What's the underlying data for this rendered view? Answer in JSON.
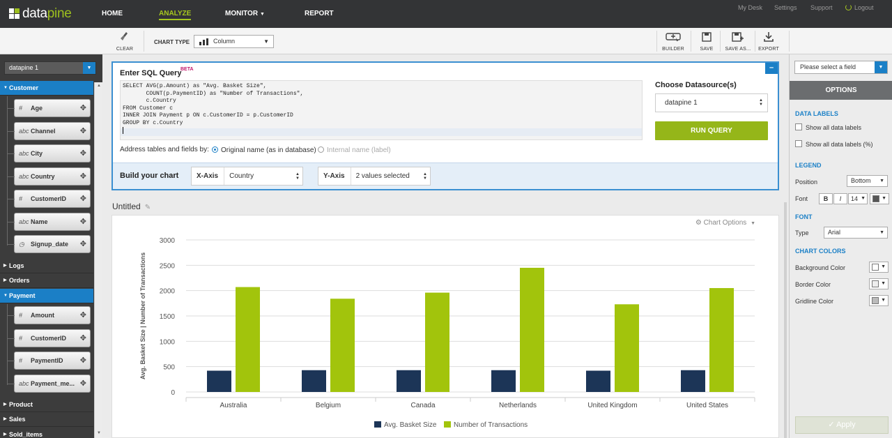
{
  "brand": {
    "part1": "data",
    "part2": "pine",
    "green": "#9dbf1e",
    "blue": "#1b7fc6"
  },
  "nav": {
    "items": [
      {
        "label": "HOME"
      },
      {
        "label": "ANALYZE"
      },
      {
        "label": "MONITOR"
      },
      {
        "label": "REPORT"
      }
    ],
    "active": "ANALYZE",
    "utility": [
      {
        "label": "My Desk"
      },
      {
        "label": "Settings"
      },
      {
        "label": "Support"
      },
      {
        "label": "Logout"
      }
    ]
  },
  "toolbar": {
    "clear_label": "CLEAR",
    "chart_type_label": "CHART TYPE",
    "chart_type_value": "Column",
    "builder_label": "BUILDER",
    "save_label": "SAVE",
    "save_as_label": "SAVE AS...",
    "export_label": "EXPORT"
  },
  "sidebar": {
    "datasource": "datapine 1",
    "tables": [
      {
        "name": "Customer",
        "open": true,
        "fields": [
          {
            "name": "Age",
            "type": "number"
          },
          {
            "name": "Channel",
            "type": "text"
          },
          {
            "name": "City",
            "type": "text"
          },
          {
            "name": "Country",
            "type": "text"
          },
          {
            "name": "CustomerID",
            "type": "number"
          },
          {
            "name": "Name",
            "type": "text"
          },
          {
            "name": "Signup_date",
            "type": "date"
          }
        ]
      },
      {
        "name": "Logs",
        "open": false,
        "fields": []
      },
      {
        "name": "Orders",
        "open": false,
        "fields": []
      },
      {
        "name": "Payment",
        "open": true,
        "fields": [
          {
            "name": "Amount",
            "type": "number"
          },
          {
            "name": "CustomerID",
            "type": "number"
          },
          {
            "name": "PaymentID",
            "type": "number"
          },
          {
            "name": "Payment_me...",
            "type": "text"
          }
        ]
      },
      {
        "name": "Product",
        "open": false,
        "fields": []
      },
      {
        "name": "Sales",
        "open": false,
        "fields": []
      },
      {
        "name": "Sold_items",
        "open": false,
        "fields": []
      }
    ]
  },
  "sql": {
    "title": "Enter SQL Query",
    "beta": "BETA",
    "lines": [
      "SELECT AVG(p.Amount) as \"Avg. Basket Size\",",
      "       COUNT(p.PaymentID) as \"Number of Transactions\",",
      "       c.Country",
      "FROM Customer c",
      "INNER JOIN Payment p ON c.CustomerID = p.CustomerID",
      "GROUP BY c.Country"
    ],
    "choose_ds_label": "Choose Datasource(s)",
    "datasource": "datapine 1",
    "run_label": "RUN QUERY",
    "address_label": "Address tables and fields by:",
    "radio_original": "Original name (as in database)",
    "radio_internal": "Internal name (label)"
  },
  "build": {
    "title": "Build your chart",
    "x_key": "X-Axis",
    "x_value": "Country",
    "y_key": "Y-Axis",
    "y_value": "2 values selected"
  },
  "chart_header": {
    "title": "Untitled",
    "options_label": "Chart Options"
  },
  "chart_data": {
    "type": "bar",
    "categories": [
      "Australia",
      "Belgium",
      "Canada",
      "Netherlands",
      "United Kingdom",
      "United States"
    ],
    "series": [
      {
        "name": "Avg. Basket Size",
        "color": "#1c3557",
        "values": [
          420,
          430,
          430,
          430,
          420,
          430
        ]
      },
      {
        "name": "Number of Transactions",
        "color": "#a2c40c",
        "values": [
          2070,
          1840,
          1960,
          2450,
          1730,
          2050
        ]
      }
    ],
    "ylabel": "Avg. Basket Size | Number of Transactions",
    "ylim": [
      0,
      3000
    ],
    "yticks": [
      0,
      500,
      1000,
      1500,
      2000,
      2500,
      3000
    ],
    "grid": true,
    "legend": "bottom"
  },
  "options": {
    "field_select": "Please select a field",
    "header": "OPTIONS",
    "data_labels": {
      "title": "DATA LABELS",
      "show_all": "Show all data labels",
      "show_all_pct": "Show all data labels (%)"
    },
    "legend": {
      "title": "LEGEND",
      "position_label": "Position",
      "position_value": "Bottom",
      "font_label": "Font",
      "bold": "B",
      "italic": "I",
      "size": "14"
    },
    "font": {
      "title": "FONT",
      "type_label": "Type",
      "type_value": "Arial"
    },
    "colors": {
      "title": "CHART COLORS",
      "background": "Background Color",
      "border": "Border Color",
      "gridline": "Gridline Color"
    },
    "apply_label": "Apply"
  }
}
